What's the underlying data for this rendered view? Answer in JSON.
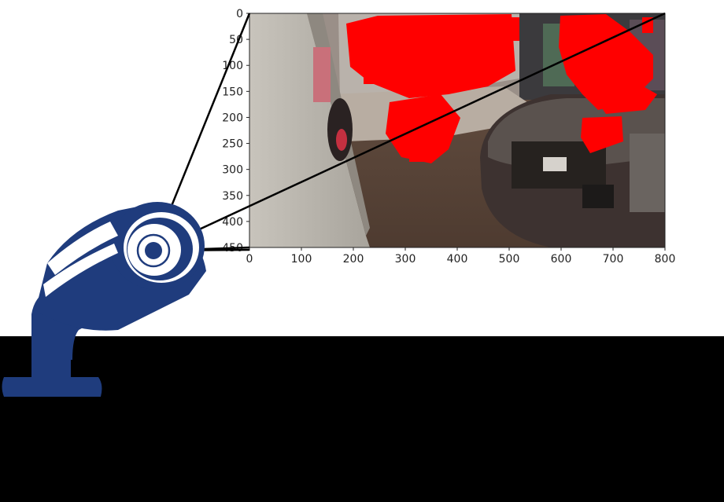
{
  "figure": {
    "image_description": "CCTV camera frame of a retail store interior with red foreground-detection overlay",
    "overlay_color": "#ff0000",
    "camera_color": "#1f3c7d",
    "background_band_color": "#000000"
  },
  "axes": {
    "x_ticks": [
      "0",
      "100",
      "200",
      "300",
      "400",
      "500",
      "600",
      "700",
      "800"
    ],
    "y_ticks": [
      "0",
      "50",
      "100",
      "150",
      "200",
      "250",
      "300",
      "350",
      "400",
      "450"
    ]
  },
  "icons": {
    "camera": "security-camera-icon"
  },
  "chart_data": {
    "type": "heatmap",
    "xlim": [
      0,
      800
    ],
    "ylim": [
      450,
      0
    ],
    "x_ticks": [
      0,
      100,
      200,
      300,
      400,
      500,
      600,
      700,
      800
    ],
    "y_ticks": [
      0,
      50,
      100,
      150,
      200,
      250,
      300,
      350,
      400,
      450
    ],
    "grid": false
  }
}
